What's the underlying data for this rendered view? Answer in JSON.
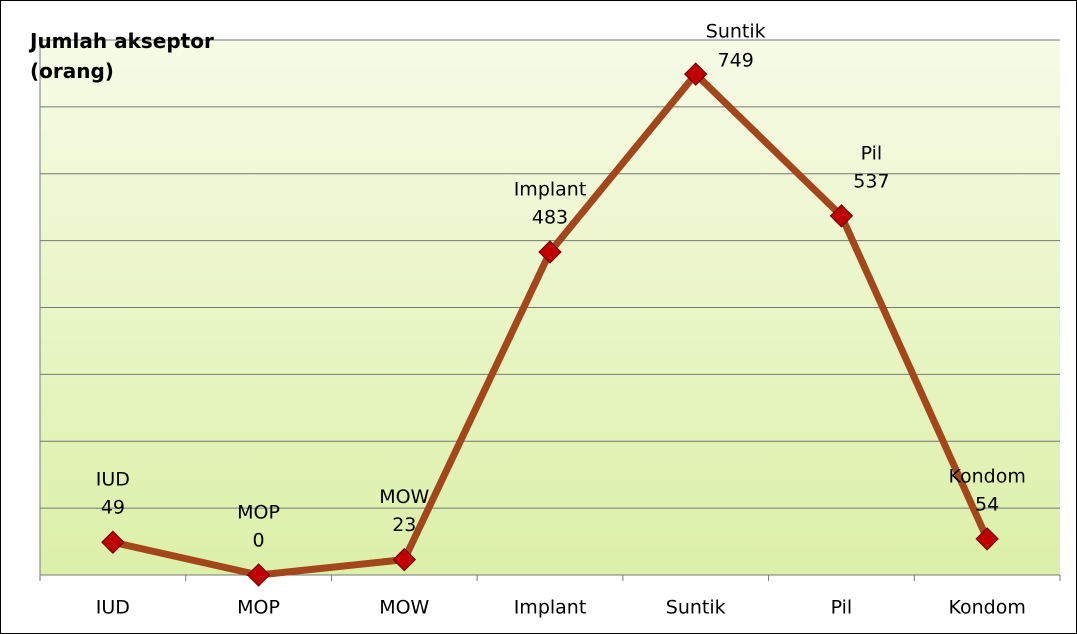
{
  "chart_data": {
    "type": "line",
    "title": "Jumlah akseptor (orang)",
    "categories": [
      "IUD",
      "MOP",
      "MOW",
      "Implant",
      "Suntik",
      "Pil",
      "Kondom"
    ],
    "values": [
      49,
      0,
      23,
      483,
      749,
      537,
      54
    ],
    "color": "#a3461c",
    "marker_color": "#c00000",
    "ylim": [
      0,
      800
    ],
    "yticks": [
      0,
      100,
      200,
      300,
      400,
      500,
      600,
      700,
      800
    ],
    "grid": true
  }
}
